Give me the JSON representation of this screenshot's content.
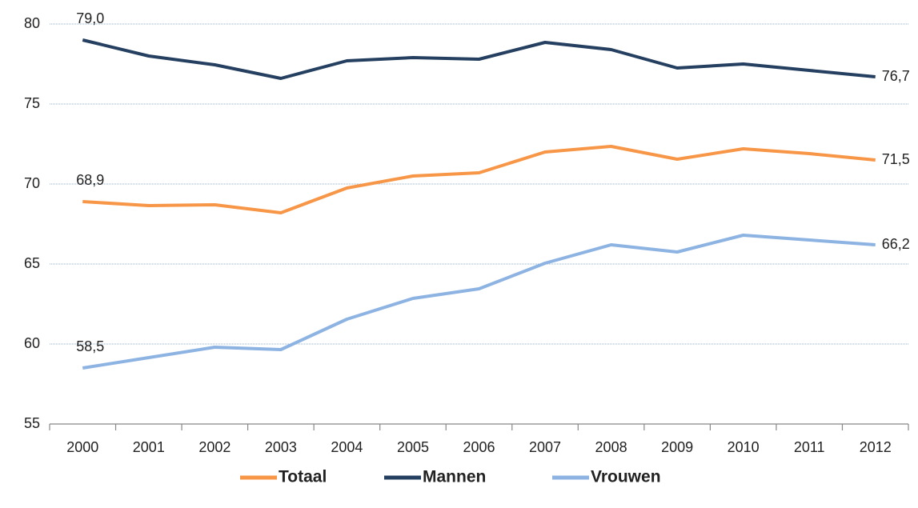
{
  "chart_data": {
    "type": "line",
    "categories": [
      "2000",
      "2001",
      "2002",
      "2003",
      "2004",
      "2005",
      "2006",
      "2007",
      "2008",
      "2009",
      "2010",
      "2011",
      "2012"
    ],
    "series": [
      {
        "name": "Totaal",
        "color": "#f79646",
        "values": [
          68.9,
          68.65,
          68.7,
          68.2,
          69.75,
          70.5,
          70.7,
          72.0,
          72.35,
          71.55,
          72.2,
          71.9,
          71.5
        ],
        "value_labels": [
          "68,9",
          null,
          null,
          null,
          null,
          null,
          null,
          null,
          null,
          null,
          null,
          null,
          "71,5"
        ]
      },
      {
        "name": "Mannen",
        "color": "#243f60",
        "values": [
          79.0,
          78.0,
          77.45,
          76.6,
          77.7,
          77.9,
          77.8,
          78.85,
          78.4,
          77.25,
          77.5,
          77.1,
          76.7
        ],
        "value_labels": [
          "79,0",
          null,
          null,
          null,
          null,
          null,
          null,
          null,
          null,
          null,
          null,
          null,
          "76,7"
        ]
      },
      {
        "name": "Vrouwen",
        "color": "#8db3e2",
        "values": [
          58.5,
          59.15,
          59.8,
          59.65,
          61.55,
          62.85,
          63.45,
          65.05,
          66.2,
          65.75,
          66.8,
          66.5,
          66.2
        ],
        "value_labels": [
          "58,5",
          null,
          null,
          null,
          null,
          null,
          null,
          null,
          null,
          null,
          null,
          null,
          "66,2"
        ]
      }
    ],
    "ylim": [
      55,
      80
    ],
    "yticks": [
      55,
      60,
      65,
      70,
      75,
      80
    ],
    "grid": true,
    "legend": "bottom"
  }
}
